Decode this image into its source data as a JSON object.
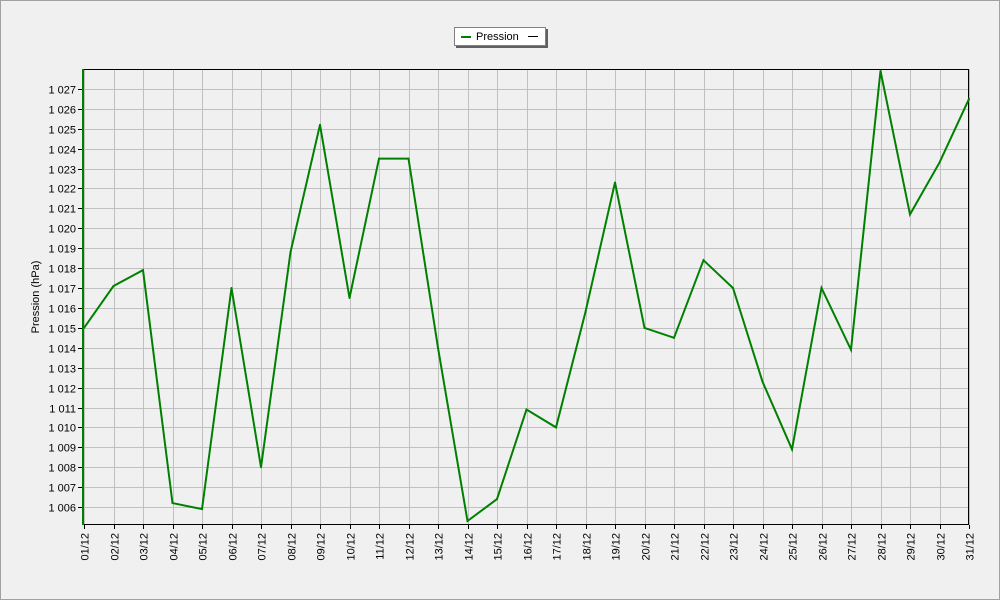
{
  "colors": {
    "series": "#008000",
    "grid": "#c0c0c0",
    "axis": "#000000",
    "plot_background": "#f0f0f0"
  },
  "legend": {
    "label": "Pression",
    "placement": "top-center"
  },
  "chart_data": {
    "type": "line",
    "title": "",
    "xlabel": "",
    "ylabel": "Pression (hPa)",
    "categories": [
      "01/12",
      "02/12",
      "03/12",
      "04/12",
      "05/12",
      "06/12",
      "07/12",
      "08/12",
      "09/12",
      "10/12",
      "11/12",
      "12/12",
      "13/12",
      "14/12",
      "15/12",
      "16/12",
      "17/12",
      "18/12",
      "19/12",
      "20/12",
      "21/12",
      "22/12",
      "23/12",
      "24/12",
      "25/12",
      "26/12",
      "27/12",
      "28/12",
      "29/12",
      "30/12",
      "31/12"
    ],
    "yticks": [
      "1 006",
      "1 007",
      "1 008",
      "1 009",
      "1 010",
      "1 011",
      "1 012",
      "1 013",
      "1 014",
      "1 015",
      "1 016",
      "1 017",
      "1 018",
      "1 019",
      "1 020",
      "1 021",
      "1 022",
      "1 023",
      "1 024",
      "1 025",
      "1 026",
      "1 027"
    ],
    "ylim": [
      1005.2,
      1027.9
    ],
    "grid": true,
    "series": [
      {
        "name": "Pression",
        "values": [
          1015.0,
          1017.1,
          1017.9,
          1006.2,
          1005.9,
          1017.0,
          1008.0,
          1018.8,
          1025.2,
          1016.5,
          1023.5,
          1023.5,
          1014.0,
          1005.3,
          1006.4,
          1010.9,
          1010.0,
          1015.8,
          1022.3,
          1015.0,
          1014.5,
          1018.4,
          1017.0,
          1012.3,
          1008.9,
          1017.0,
          1013.9,
          1027.9,
          1020.7,
          1023.3,
          1026.5
        ]
      }
    ]
  }
}
